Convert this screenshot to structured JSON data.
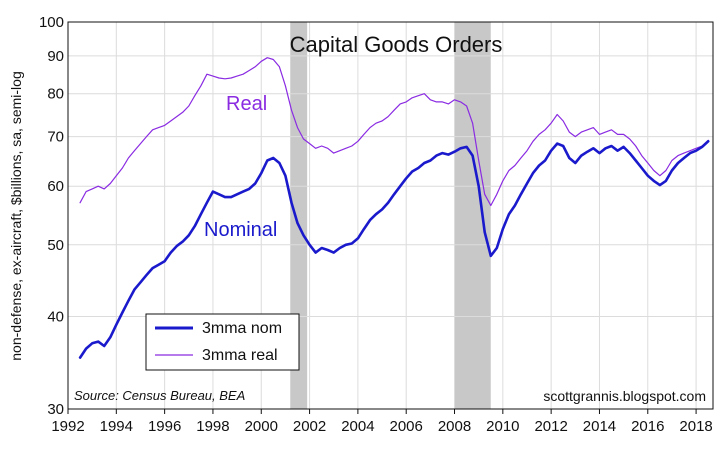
{
  "chart_data": {
    "type": "line",
    "title": "Capital Goods Orders",
    "ylabel": "non-defense, ex-aircraft, $billions, sa, semi-log",
    "yscale": "log",
    "ylim": [
      30,
      100
    ],
    "xlim": [
      1992,
      2018.7
    ],
    "xticks": [
      "1992",
      "1994",
      "1996",
      "1998",
      "2000",
      "2002",
      "2004",
      "2006",
      "2008",
      "2010",
      "2012",
      "2014",
      "2016",
      "2018"
    ],
    "yticks": [
      "30",
      "40",
      "50",
      "60",
      "70",
      "80",
      "90",
      "100"
    ],
    "grid": true,
    "recessions": [
      [
        2001.2,
        2001.9
      ],
      [
        2008.0,
        2009.5
      ]
    ],
    "colors": {
      "nominal": "#1a1acc",
      "real": "#8a2be2",
      "recession": "#c8c8c8"
    },
    "series": [
      {
        "name": "3mma nom",
        "x": [
          1992.5,
          1992.75,
          1993,
          1993.25,
          1993.5,
          1993.75,
          1994,
          1994.25,
          1994.5,
          1994.75,
          1995,
          1995.25,
          1995.5,
          1995.75,
          1996,
          1996.25,
          1996.5,
          1996.75,
          1997,
          1997.25,
          1997.5,
          1997.75,
          1998,
          1998.25,
          1998.5,
          1998.75,
          1999,
          1999.25,
          1999.5,
          1999.75,
          2000,
          2000.25,
          2000.5,
          2000.75,
          2001,
          2001.25,
          2001.5,
          2001.75,
          2002,
          2002.25,
          2002.5,
          2002.75,
          2003,
          2003.25,
          2003.5,
          2003.75,
          2004,
          2004.25,
          2004.5,
          2004.75,
          2005,
          2005.25,
          2005.5,
          2005.75,
          2006,
          2006.25,
          2006.5,
          2006.75,
          2007,
          2007.25,
          2007.5,
          2007.75,
          2008,
          2008.25,
          2008.5,
          2008.75,
          2009,
          2009.25,
          2009.5,
          2009.75,
          2010,
          2010.25,
          2010.5,
          2010.75,
          2011,
          2011.25,
          2011.5,
          2011.75,
          2012,
          2012.25,
          2012.5,
          2012.75,
          2013,
          2013.25,
          2013.5,
          2013.75,
          2014,
          2014.25,
          2014.5,
          2014.75,
          2015,
          2015.25,
          2015.5,
          2015.75,
          2016,
          2016.25,
          2016.5,
          2016.75,
          2017,
          2017.25,
          2017.5,
          2017.75,
          2018,
          2018.25,
          2018.5
        ],
        "values": [
          35.2,
          36.2,
          36.8,
          37.0,
          36.5,
          37.5,
          39.0,
          40.5,
          42.0,
          43.5,
          44.5,
          45.5,
          46.5,
          47.0,
          47.5,
          48.8,
          49.8,
          50.5,
          51.5,
          53.0,
          55.0,
          57.0,
          59.0,
          58.5,
          58.0,
          58.0,
          58.5,
          59.0,
          59.5,
          60.5,
          62.5,
          65.0,
          65.5,
          64.5,
          62.0,
          57.0,
          53.5,
          51.5,
          50.0,
          48.8,
          49.5,
          49.2,
          48.8,
          49.5,
          50.0,
          50.2,
          51.0,
          52.5,
          54.0,
          55.0,
          55.8,
          57.0,
          58.5,
          60.0,
          61.5,
          62.8,
          63.5,
          64.5,
          65.0,
          66.0,
          66.5,
          66.2,
          66.8,
          67.5,
          67.8,
          66.0,
          60.0,
          52.0,
          48.3,
          49.5,
          52.5,
          55.0,
          56.5,
          58.5,
          60.5,
          62.5,
          64.0,
          65.0,
          67.0,
          68.5,
          68.0,
          65.5,
          64.5,
          66.0,
          66.8,
          67.5,
          66.5,
          67.5,
          68.0,
          67.0,
          67.8,
          66.5,
          65.0,
          63.5,
          62.0,
          61.0,
          60.2,
          61.0,
          63.0,
          64.5,
          65.5,
          66.5,
          67.0,
          67.8,
          69.0
        ]
      },
      {
        "name": "3mma real",
        "x": [
          1992.5,
          1992.75,
          1993,
          1993.25,
          1993.5,
          1993.75,
          1994,
          1994.25,
          1994.5,
          1994.75,
          1995,
          1995.25,
          1995.5,
          1995.75,
          1996,
          1996.25,
          1996.5,
          1996.75,
          1997,
          1997.25,
          1997.5,
          1997.75,
          1998,
          1998.25,
          1998.5,
          1998.75,
          1999,
          1999.25,
          1999.5,
          1999.75,
          2000,
          2000.25,
          2000.5,
          2000.75,
          2001,
          2001.25,
          2001.5,
          2001.75,
          2002,
          2002.25,
          2002.5,
          2002.75,
          2003,
          2003.25,
          2003.5,
          2003.75,
          2004,
          2004.25,
          2004.5,
          2004.75,
          2005,
          2005.25,
          2005.5,
          2005.75,
          2006,
          2006.25,
          2006.5,
          2006.75,
          2007,
          2007.25,
          2007.5,
          2007.75,
          2008,
          2008.25,
          2008.5,
          2008.75,
          2009,
          2009.25,
          2009.5,
          2009.75,
          2010,
          2010.25,
          2010.5,
          2010.75,
          2011,
          2011.25,
          2011.5,
          2011.75,
          2012,
          2012.25,
          2012.5,
          2012.75,
          2013,
          2013.25,
          2013.5,
          2013.75,
          2014,
          2014.25,
          2014.5,
          2014.75,
          2015,
          2015.25,
          2015.5,
          2015.75,
          2016,
          2016.25,
          2016.5,
          2016.75,
          2017,
          2017.25,
          2017.5,
          2017.75,
          2018,
          2018.25,
          2018.5
        ],
        "values": [
          57.0,
          59.0,
          59.5,
          60.0,
          59.5,
          60.5,
          62.0,
          63.5,
          65.5,
          67.0,
          68.5,
          70.0,
          71.5,
          72.0,
          72.5,
          73.5,
          74.5,
          75.5,
          77.0,
          79.5,
          82.0,
          85.0,
          84.5,
          84.0,
          83.8,
          84.0,
          84.5,
          85.0,
          86.0,
          87.0,
          88.5,
          89.5,
          89.0,
          87.0,
          82.0,
          76.0,
          72.0,
          69.5,
          68.5,
          67.5,
          68.0,
          67.5,
          66.5,
          67.0,
          67.5,
          68.0,
          69.0,
          70.5,
          72.0,
          73.0,
          73.5,
          74.5,
          76.0,
          77.5,
          78.0,
          79.0,
          79.5,
          80.0,
          78.5,
          78.0,
          78.0,
          77.5,
          78.5,
          78.0,
          77.0,
          73.0,
          65.0,
          58.5,
          56.5,
          58.5,
          61.0,
          63.0,
          64.0,
          65.5,
          67.0,
          69.0,
          70.5,
          71.5,
          73.0,
          75.0,
          73.5,
          71.0,
          70.0,
          71.0,
          71.5,
          72.0,
          70.5,
          71.0,
          71.5,
          70.5,
          70.5,
          69.5,
          68.0,
          66.0,
          64.5,
          63.0,
          62.0,
          63.0,
          65.0,
          66.0,
          66.5,
          67.0,
          67.5,
          68.0,
          69.2
        ]
      }
    ],
    "annotations": {
      "real_label": "Real",
      "nominal_label": "Nominal"
    },
    "legend": {
      "placement": "lower-left",
      "entries": [
        "3mma nom",
        "3mma real"
      ]
    },
    "source": "Source: Census Bureau, BEA",
    "credit": "scottgrannis.blogspot.com"
  }
}
